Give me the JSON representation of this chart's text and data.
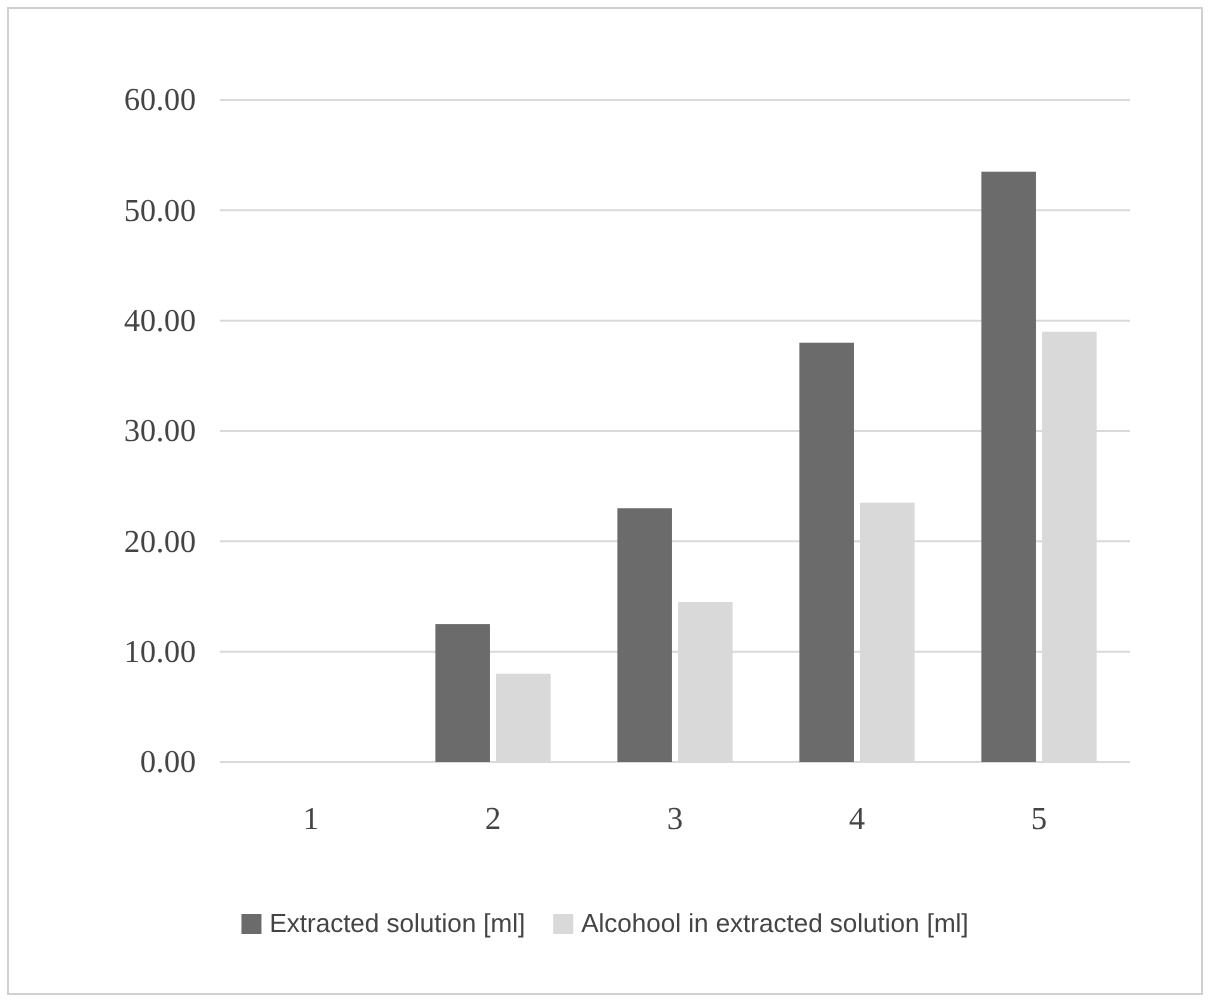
{
  "chart_data": {
    "type": "bar",
    "categories": [
      "1",
      "2",
      "3",
      "4",
      "5"
    ],
    "series": [
      {
        "name": "Extracted solution [ml]",
        "color": "#6b6b6b",
        "values": [
          0,
          12.5,
          23,
          38,
          53.5
        ]
      },
      {
        "name": "Alcohool in extracted solution [ml]",
        "color": "#d9d9d9",
        "values": [
          0,
          8,
          14.5,
          23.5,
          39
        ]
      }
    ],
    "ylim": [
      0,
      60
    ],
    "yticks": [
      {
        "value": 0,
        "label": "0.00"
      },
      {
        "value": 10,
        "label": "10.00"
      },
      {
        "value": 20,
        "label": "20.00"
      },
      {
        "value": 30,
        "label": "30.00"
      },
      {
        "value": 40,
        "label": "40.00"
      },
      {
        "value": 50,
        "label": "50.00"
      },
      {
        "value": 60,
        "label": "60.00"
      }
    ],
    "grid": "y",
    "legend": "bottom"
  }
}
